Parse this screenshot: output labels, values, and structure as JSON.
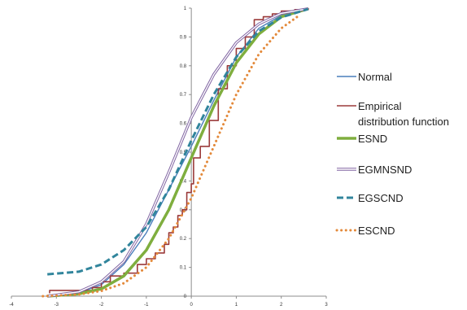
{
  "chart_data": {
    "type": "line",
    "title": "",
    "xlabel": "",
    "ylabel": "",
    "xlim": [
      -4,
      3
    ],
    "ylim": [
      0,
      1
    ],
    "x_ticks": [
      -4,
      -3,
      -2,
      -1,
      0,
      1,
      2,
      3
    ],
    "y_ticks": [
      0,
      0.1,
      0.2,
      0.3,
      0.4,
      0.5,
      0.6,
      0.7,
      0.8,
      0.9,
      1
    ],
    "x_tick_labels": [
      "-4",
      "-3",
      "-2",
      "-1",
      "0",
      "1",
      "2",
      "3"
    ],
    "y_tick_labels": [
      "0",
      "0.1",
      "0.2",
      "0.3",
      "0.4",
      "0.5",
      "0.6",
      "0.7",
      "0.8",
      "0.9",
      "1"
    ],
    "grid": false,
    "legend_position": "right",
    "series": [
      {
        "name": "Normal",
        "color": "#4a7ebb",
        "style": "solid-thin",
        "points": [
          [
            -3.2,
            0.002
          ],
          [
            -2.5,
            0.012
          ],
          [
            -2.0,
            0.04
          ],
          [
            -1.5,
            0.11
          ],
          [
            -1.0,
            0.22
          ],
          [
            -0.5,
            0.37
          ],
          [
            0.0,
            0.52
          ],
          [
            0.5,
            0.68
          ],
          [
            1.0,
            0.83
          ],
          [
            1.5,
            0.93
          ],
          [
            2.0,
            0.975
          ],
          [
            2.6,
            0.998
          ]
        ]
      },
      {
        "name": "Empirical\ndistribution function",
        "color": "#9b3a3a",
        "style": "step",
        "points": [
          [
            -3.15,
            0.01
          ],
          [
            -3.15,
            0.02
          ],
          [
            -2.2,
            0.03
          ],
          [
            -2.0,
            0.05
          ],
          [
            -1.8,
            0.07
          ],
          [
            -1.5,
            0.08
          ],
          [
            -1.2,
            0.11
          ],
          [
            -1.0,
            0.13
          ],
          [
            -0.8,
            0.15
          ],
          [
            -0.6,
            0.18
          ],
          [
            -0.5,
            0.22
          ],
          [
            -0.4,
            0.24
          ],
          [
            -0.3,
            0.28
          ],
          [
            -0.2,
            0.3
          ],
          [
            -0.1,
            0.36
          ],
          [
            0.0,
            0.39
          ],
          [
            0.05,
            0.48
          ],
          [
            0.2,
            0.52
          ],
          [
            0.4,
            0.61
          ],
          [
            0.6,
            0.72
          ],
          [
            0.8,
            0.8
          ],
          [
            1.0,
            0.86
          ],
          [
            1.2,
            0.9
          ],
          [
            1.4,
            0.96
          ],
          [
            1.6,
            0.97
          ],
          [
            1.8,
            0.98
          ],
          [
            2.0,
            0.99
          ],
          [
            2.3,
            0.995
          ],
          [
            2.6,
            1.0
          ]
        ]
      },
      {
        "name": "ESND",
        "color": "#7fae3e",
        "style": "solid-thick",
        "points": [
          [
            -3.2,
            0.0
          ],
          [
            -2.5,
            0.008
          ],
          [
            -2.0,
            0.025
          ],
          [
            -1.5,
            0.07
          ],
          [
            -1.0,
            0.16
          ],
          [
            -0.5,
            0.3
          ],
          [
            0.0,
            0.48
          ],
          [
            0.5,
            0.66
          ],
          [
            1.0,
            0.81
          ],
          [
            1.5,
            0.91
          ],
          [
            2.0,
            0.97
          ],
          [
            2.6,
            0.998
          ]
        ]
      },
      {
        "name": "EGMNSND",
        "color": "#8064a2",
        "style": "double",
        "points": [
          [
            -3.2,
            0.0
          ],
          [
            -2.5,
            0.015
          ],
          [
            -2.0,
            0.05
          ],
          [
            -1.5,
            0.12
          ],
          [
            -1.0,
            0.25
          ],
          [
            -0.5,
            0.43
          ],
          [
            0.0,
            0.62
          ],
          [
            0.5,
            0.77
          ],
          [
            1.0,
            0.88
          ],
          [
            1.5,
            0.945
          ],
          [
            2.0,
            0.982
          ],
          [
            2.6,
            0.998
          ]
        ]
      },
      {
        "name": "EGSCND",
        "color": "#31859c",
        "style": "dashed-thick",
        "points": [
          [
            -3.2,
            0.076
          ],
          [
            -2.5,
            0.085
          ],
          [
            -2.0,
            0.11
          ],
          [
            -1.5,
            0.16
          ],
          [
            -1.0,
            0.24
          ],
          [
            -0.5,
            0.37
          ],
          [
            0.0,
            0.54
          ],
          [
            0.5,
            0.7
          ],
          [
            1.0,
            0.83
          ],
          [
            1.5,
            0.92
          ],
          [
            2.0,
            0.968
          ],
          [
            2.6,
            0.997
          ]
        ]
      },
      {
        "name": "ESCND",
        "color": "#e3893a",
        "style": "dotted",
        "points": [
          [
            -3.3,
            0.0
          ],
          [
            -2.5,
            0.006
          ],
          [
            -2.0,
            0.018
          ],
          [
            -1.5,
            0.045
          ],
          [
            -1.0,
            0.1
          ],
          [
            -0.5,
            0.2
          ],
          [
            0.0,
            0.34
          ],
          [
            0.5,
            0.52
          ],
          [
            1.0,
            0.7
          ],
          [
            1.5,
            0.84
          ],
          [
            2.0,
            0.93
          ],
          [
            2.4,
            0.975
          ]
        ]
      }
    ]
  }
}
